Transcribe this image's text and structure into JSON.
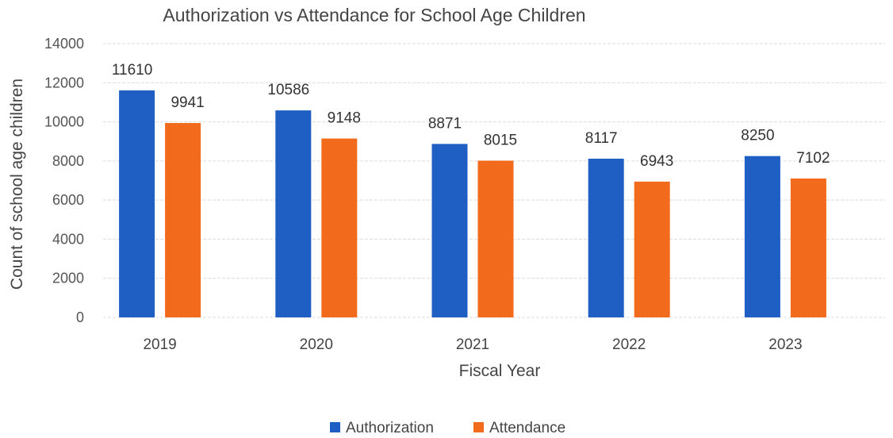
{
  "chart_data": {
    "type": "bar",
    "title": "Authorization vs Attendance for School Age Children",
    "xlabel": "Fiscal Year",
    "ylabel": "Count of school age children",
    "categories": [
      "2019",
      "2020",
      "2021",
      "2022",
      "2023"
    ],
    "series": [
      {
        "name": "Authorization",
        "values": [
          11610,
          10586,
          8871,
          8117,
          8250
        ],
        "color": "#1f5fc4"
      },
      {
        "name": "Attendance",
        "values": [
          9941,
          9148,
          8015,
          6943,
          7102
        ],
        "color": "#f26a1b"
      }
    ],
    "ylim": [
      0,
      14000
    ],
    "yticks": [
      "0",
      "2000",
      "4000",
      "6000",
      "8000",
      "10000",
      "12000",
      "14000"
    ],
    "grid": true,
    "legend": "bottom"
  }
}
